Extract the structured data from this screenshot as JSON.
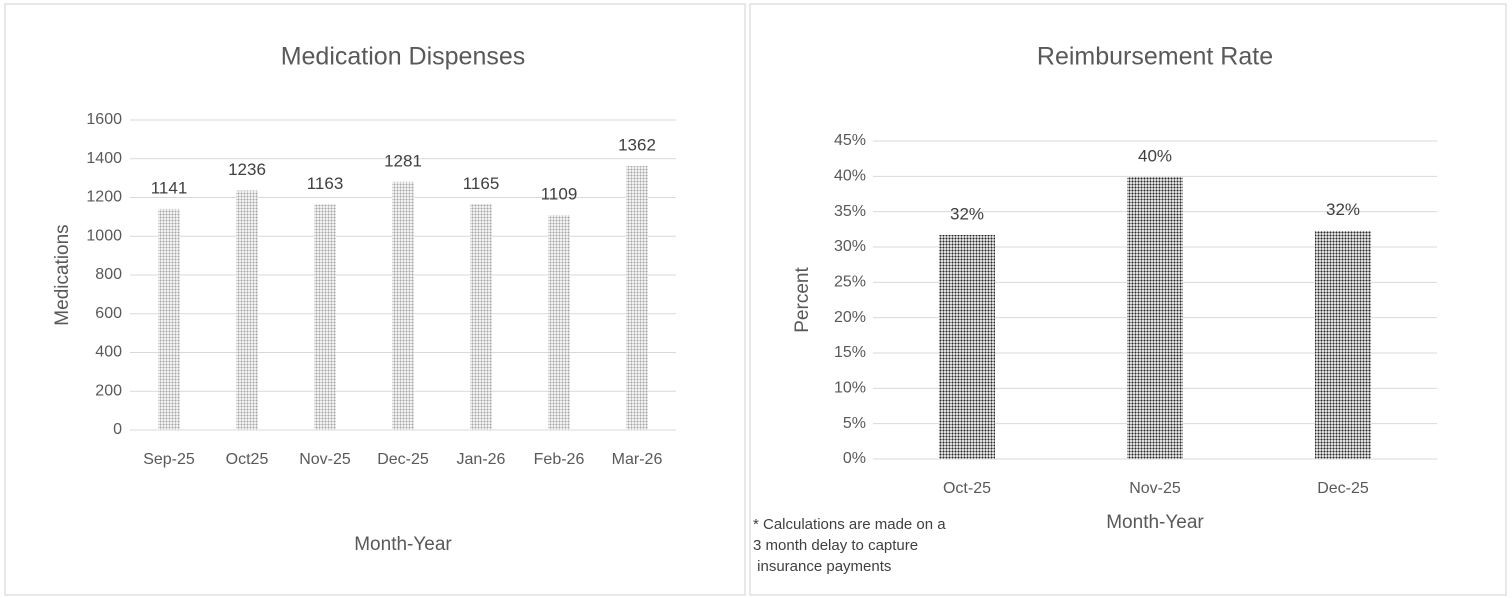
{
  "chart_data": [
    {
      "type": "bar",
      "title": "Medication Dispenses",
      "x_label": "Month-Year",
      "y_label": "Medications",
      "categories": [
        "Sep-25",
        "Oct25",
        "Nov-25",
        "Dec-25",
        "Jan-26",
        "Feb-26",
        "Mar-26"
      ],
      "values": [
        1141,
        1236,
        1163,
        1281,
        1165,
        1109,
        1362
      ],
      "color": "#a6a6a6",
      "ylim": [
        0,
        1600
      ],
      "yticks": [
        0,
        200,
        400,
        600,
        800,
        1000,
        1200,
        1400,
        1600
      ],
      "grid": true
    },
    {
      "type": "bar",
      "title": "Reimbursement Rate",
      "x_label": "Month-Year",
      "y_label": "Percent",
      "categories": [
        "Oct-25",
        "Nov-25",
        "Dec-25"
      ],
      "values": [
        31.7,
        39.9,
        32.3
      ],
      "value_labels": [
        "32%",
        "40%",
        "32%"
      ],
      "color": "#262626",
      "ylim": [
        0,
        45
      ],
      "yticks": [
        {
          "value": 0,
          "label": "0%"
        },
        {
          "value": 5,
          "label": "5%"
        },
        {
          "value": 10,
          "label": "10%"
        },
        {
          "value": 15,
          "label": "15%"
        },
        {
          "value": 20,
          "label": "20%"
        },
        {
          "value": 25,
          "label": "25%"
        },
        {
          "value": 30,
          "label": "30%"
        },
        {
          "value": 35,
          "label": "35%"
        },
        {
          "value": 40,
          "label": "40%"
        },
        {
          "value": 45,
          "label": "45%"
        }
      ],
      "grid": true,
      "annotation": [
        "* Calculations are made on a",
        "3 month delay to capture",
        " insurance payments"
      ]
    }
  ]
}
